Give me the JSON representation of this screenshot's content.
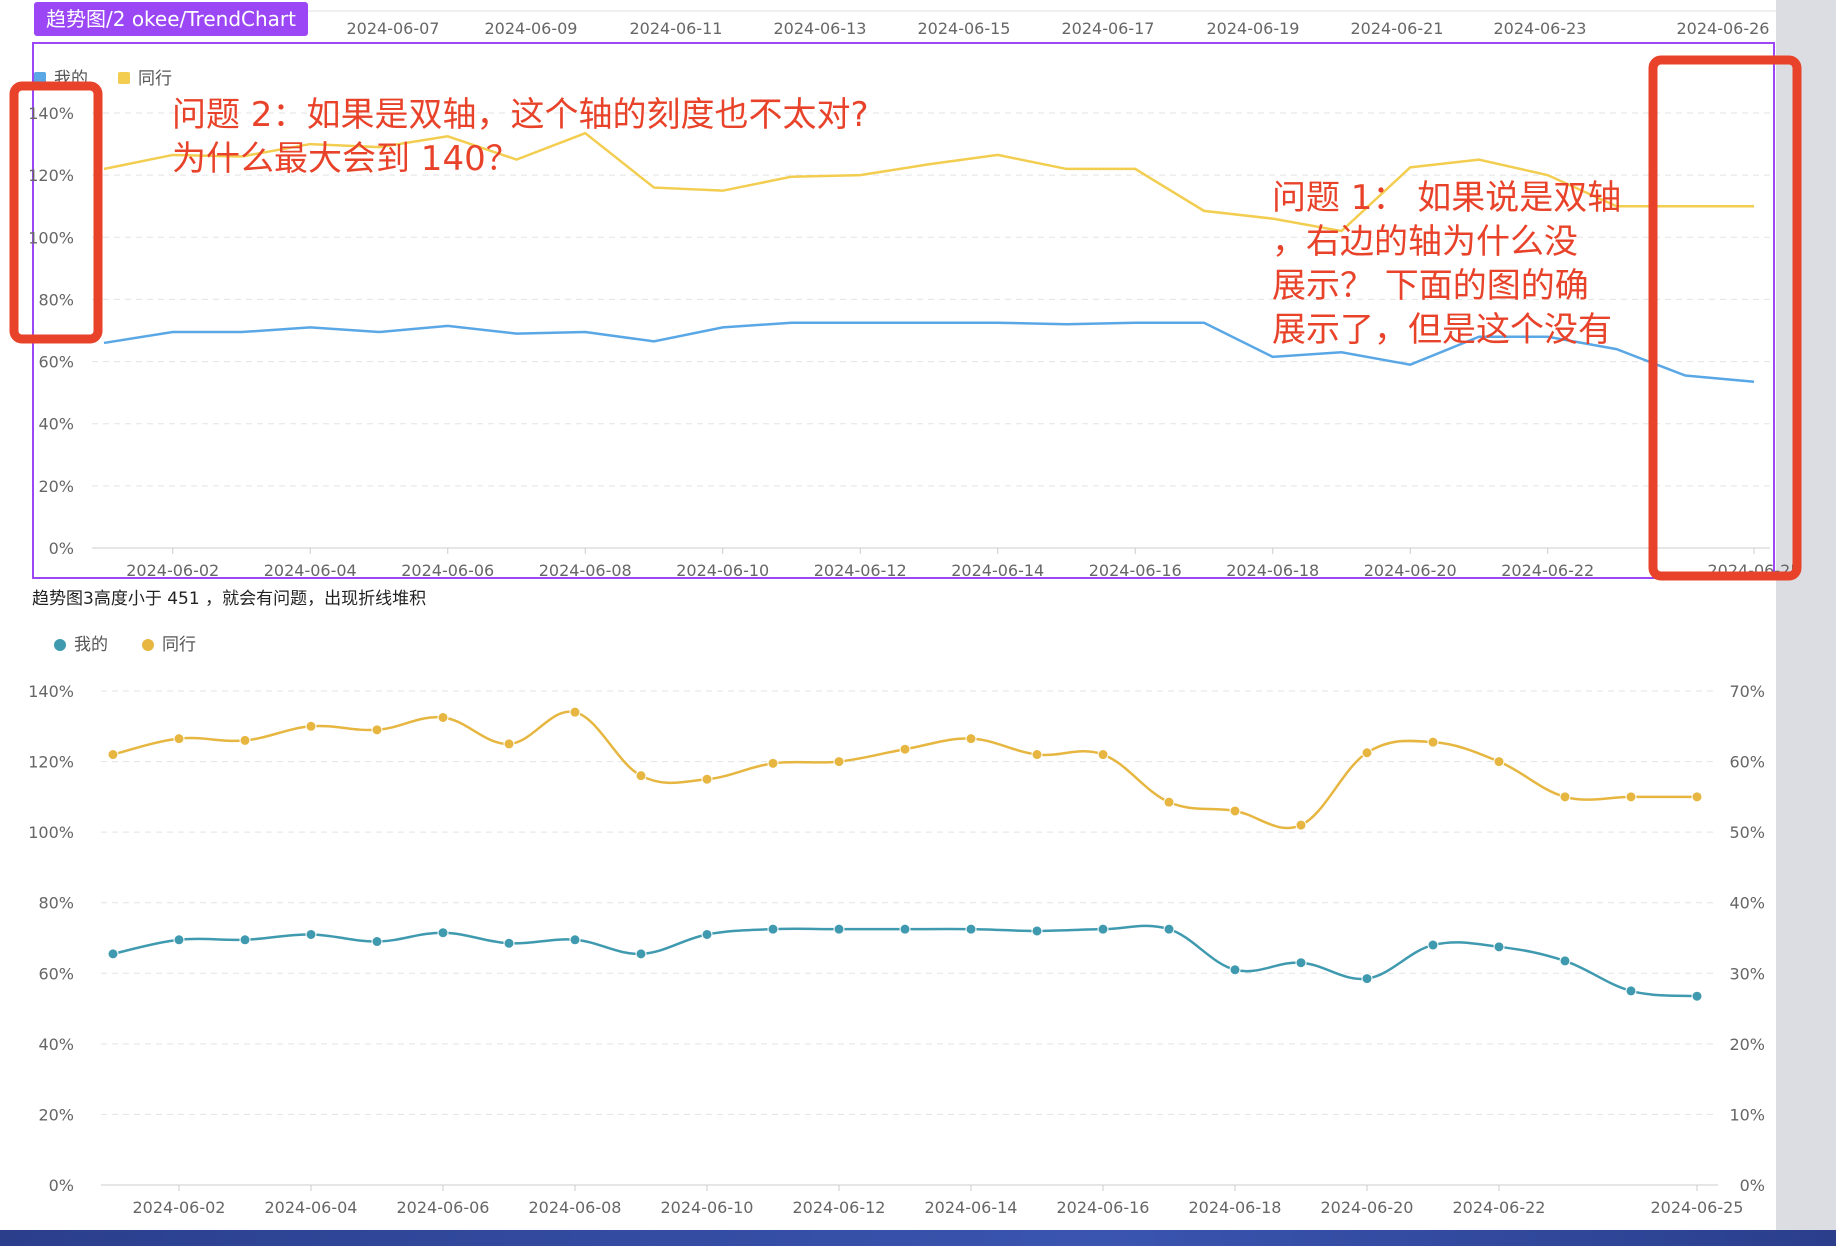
{
  "tag_label": "趋势图/2  okee/TrendChart",
  "top_axis_ticks": [
    "2024-06-07",
    "2024-06-09",
    "2024-06-11",
    "2024-06-13",
    "2024-06-15",
    "2024-06-17",
    "2024-06-19",
    "2024-06-21",
    "2024-06-23",
    "2024-06-26"
  ],
  "caption": "趋势图3高度小于 451 ，就会有问题，出现折线堆积",
  "annotations": {
    "question2": "问题 2：如果是双轴，这个轴的刻度也不太对?\n为什么最大会到 140？",
    "question1": "问题 1：  如果说是双轴\n，右边的轴为什么没\n展示？ 下面的图的确\n展示了，但是这个没有"
  },
  "colors": {
    "mine_top": "#5aa7e6",
    "peer_top": "#f2cd4f",
    "mine_bottom": "#3f9ab0",
    "peer_bottom": "#e6b640",
    "frame": "#9b47f5",
    "annotation": "#e8432a"
  },
  "chart_data": [
    {
      "type": "line",
      "legend": [
        "我的",
        "同行"
      ],
      "x_tick_labels": [
        "2024-06-02",
        "2024-06-04",
        "2024-06-06",
        "2024-06-08",
        "2024-06-10",
        "2024-06-12",
        "2024-06-14",
        "2024-06-16",
        "2024-06-18",
        "2024-06-20",
        "2024-06-22",
        "2024-06-25"
      ],
      "y_ticks": [
        "0%",
        "20%",
        "40%",
        "60%",
        "80%",
        "100%",
        "120%",
        "140%"
      ],
      "ylim": [
        0,
        140
      ],
      "x": [
        "2024-06-01",
        "2024-06-02",
        "2024-06-03",
        "2024-06-04",
        "2024-06-05",
        "2024-06-06",
        "2024-06-07",
        "2024-06-08",
        "2024-06-09",
        "2024-06-10",
        "2024-06-11",
        "2024-06-12",
        "2024-06-13",
        "2024-06-14",
        "2024-06-15",
        "2024-06-16",
        "2024-06-17",
        "2024-06-18",
        "2024-06-19",
        "2024-06-20",
        "2024-06-21",
        "2024-06-22",
        "2024-06-23",
        "2024-06-24",
        "2024-06-25"
      ],
      "series": [
        {
          "name": "我的",
          "values": [
            66,
            69.5,
            69.5,
            71,
            69.5,
            71.5,
            69,
            69.5,
            66.5,
            71,
            72.5,
            72.5,
            72.5,
            72.5,
            72,
            72.5,
            72.5,
            61.5,
            63,
            59,
            68,
            68,
            64,
            55.5,
            53.5
          ]
        },
        {
          "name": "同行",
          "values": [
            122,
            126.5,
            126,
            130,
            129,
            132.5,
            125,
            133.5,
            116,
            115,
            119.5,
            120,
            123.5,
            126.5,
            122,
            122,
            108.5,
            106,
            102,
            122.5,
            125,
            120,
            110,
            110,
            110
          ]
        }
      ]
    },
    {
      "type": "line",
      "legend": [
        "我的",
        "同行"
      ],
      "x_tick_labels": [
        "2024-06-02",
        "2024-06-04",
        "2024-06-06",
        "2024-06-08",
        "2024-06-10",
        "2024-06-12",
        "2024-06-14",
        "2024-06-16",
        "2024-06-18",
        "2024-06-20",
        "2024-06-22",
        "2024-06-25"
      ],
      "y_ticks": [
        "0%",
        "20%",
        "40%",
        "60%",
        "80%",
        "100%",
        "120%",
        "140%"
      ],
      "y2_ticks": [
        "0%",
        "10%",
        "20%",
        "30%",
        "40%",
        "50%",
        "60%",
        "70%"
      ],
      "ylim": [
        0,
        140
      ],
      "y2lim": [
        0,
        70
      ],
      "x": [
        "2024-06-01",
        "2024-06-02",
        "2024-06-03",
        "2024-06-04",
        "2024-06-05",
        "2024-06-06",
        "2024-06-07",
        "2024-06-08",
        "2024-06-09",
        "2024-06-10",
        "2024-06-11",
        "2024-06-12",
        "2024-06-13",
        "2024-06-14",
        "2024-06-15",
        "2024-06-16",
        "2024-06-17",
        "2024-06-18",
        "2024-06-19",
        "2024-06-20",
        "2024-06-21",
        "2024-06-22",
        "2024-06-23",
        "2024-06-24",
        "2024-06-25"
      ],
      "series": [
        {
          "name": "我的",
          "values": [
            65.5,
            69.5,
            69.5,
            71,
            69,
            71.5,
            68.5,
            69.5,
            65.5,
            71,
            72.5,
            72.5,
            72.5,
            72.5,
            72,
            72.5,
            72.5,
            61,
            63,
            58.5,
            68,
            67.5,
            63.5,
            55,
            53.5
          ]
        },
        {
          "name": "同行",
          "values": [
            122,
            126.5,
            126,
            130,
            129,
            132.5,
            125,
            134,
            116,
            115,
            119.5,
            120,
            123.5,
            126.5,
            122,
            122,
            108.5,
            106,
            102,
            122.5,
            125.5,
            120,
            110,
            110,
            110
          ]
        }
      ]
    }
  ]
}
